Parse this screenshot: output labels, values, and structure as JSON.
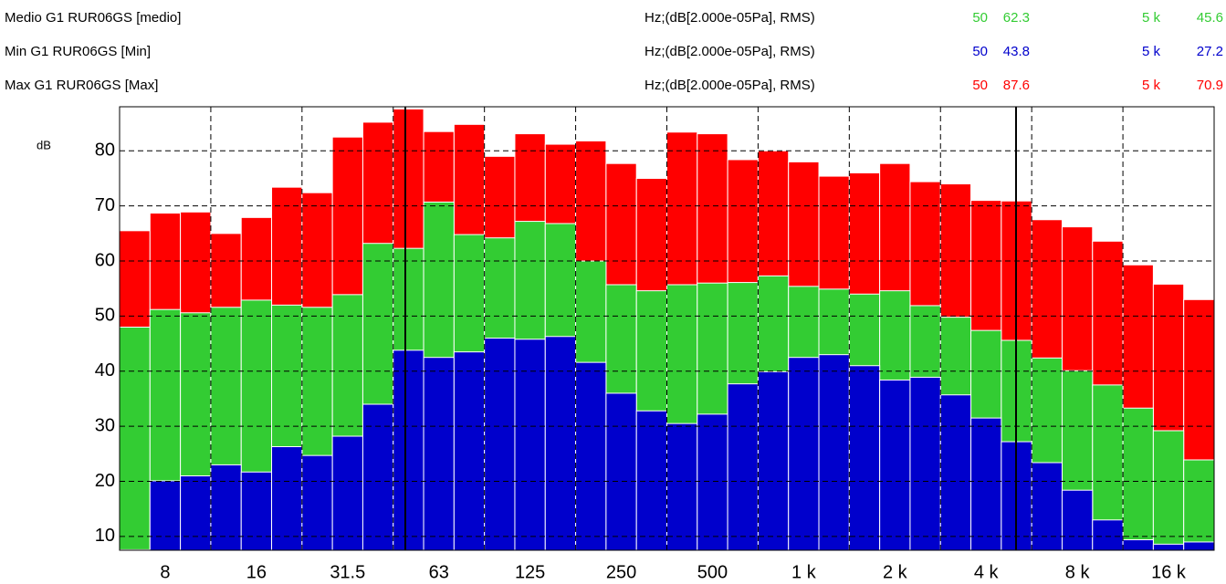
{
  "chart_data": {
    "type": "bar",
    "overlap": true,
    "ylabel": "dB",
    "categories": [
      null,
      "8",
      null,
      null,
      "16",
      null,
      null,
      "31.5",
      null,
      null,
      "63",
      null,
      null,
      "125",
      null,
      null,
      "250",
      null,
      null,
      "500",
      null,
      null,
      "1 k",
      null,
      null,
      "2 k",
      null,
      null,
      "4 k",
      null,
      null,
      "8 k",
      null,
      null,
      "16 k",
      null
    ],
    "ylim": [
      7.5,
      88
    ],
    "yticks": [
      10,
      20,
      30,
      40,
      50,
      60,
      70,
      80
    ],
    "grid": true,
    "cursor_labels": [
      "50",
      "5 k"
    ],
    "series": [
      {
        "name": "Max G1 RUR06GS [Max]",
        "unit": "Hz;(dB[2.000e-05Pa], RMS)",
        "color": "#ff0000",
        "cursor_values": [
          87.6,
          70.9
        ],
        "values": [
          65.5,
          68.7,
          68.9,
          65.0,
          67.9,
          73.4,
          72.4,
          82.5,
          85.2,
          87.6,
          83.5,
          84.8,
          79.0,
          83.1,
          81.2,
          81.8,
          77.7,
          75.0,
          83.4,
          83.1,
          78.4,
          80.0,
          78.0,
          75.4,
          76.0,
          77.7,
          74.4,
          74.0,
          71.0,
          70.9,
          67.5,
          66.2,
          63.6,
          59.3,
          55.8,
          53.0
        ]
      },
      {
        "name": "Medio G1 RUR06GS [medio]",
        "unit": "Hz;(dB[2.000e-05Pa], RMS)",
        "color": "#33cc33",
        "cursor_values": [
          62.3,
          45.6
        ],
        "values": [
          48.0,
          51.2,
          50.6,
          51.6,
          52.9,
          52.0,
          51.6,
          53.9,
          63.2,
          62.3,
          70.7,
          64.8,
          64.2,
          67.2,
          66.8,
          60.0,
          55.7,
          54.6,
          55.7,
          56.0,
          56.1,
          57.3,
          55.4,
          54.9,
          54.0,
          54.6,
          51.9,
          49.8,
          47.4,
          45.6,
          42.4,
          40.1,
          37.5,
          33.3,
          29.2,
          23.9
        ]
      },
      {
        "name": "Min G1 RUR06GS [Min]",
        "unit": "Hz;(dB[2.000e-05Pa], RMS)",
        "color": "#0000cc",
        "cursor_values": [
          43.8,
          27.2
        ],
        "values": [
          7.6,
          20.1,
          21.0,
          23.0,
          21.7,
          26.3,
          24.7,
          28.2,
          34.0,
          43.8,
          42.5,
          43.5,
          46.0,
          45.8,
          46.3,
          41.6,
          36.0,
          32.8,
          30.5,
          32.2,
          37.7,
          39.9,
          42.5,
          43.0,
          41.0,
          38.4,
          38.9,
          35.7,
          31.5,
          27.2,
          23.4,
          18.4,
          13.0,
          9.4,
          8.6,
          9.0
        ]
      }
    ]
  }
}
